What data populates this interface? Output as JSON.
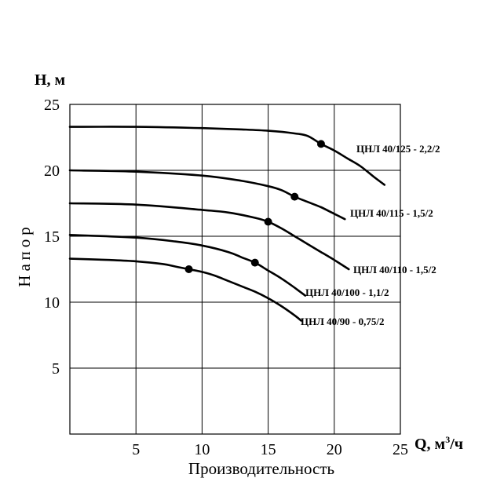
{
  "chart_data": {
    "type": "line",
    "xlabel": "Производительность",
    "ylabel": "Напор",
    "x_axis_title": {
      "main": "Q, м",
      "sup": "3",
      "rest": "/ч"
    },
    "y_axis_title": "H, м",
    "xlim": [
      0,
      25
    ],
    "ylim": [
      0,
      25
    ],
    "x_ticks": [
      5,
      10,
      15,
      20,
      25
    ],
    "y_ticks": [
      5,
      10,
      15,
      20,
      25
    ],
    "grid": true,
    "series": [
      {
        "name": "ЦНЛ 40/125 - 2,2/2",
        "x": [
          0,
          5,
          10,
          13,
          15,
          17,
          18,
          19,
          20,
          21,
          22,
          23,
          23.8
        ],
        "y": [
          23.3,
          23.3,
          23.2,
          23.1,
          23.0,
          22.8,
          22.6,
          22.0,
          21.5,
          20.9,
          20.3,
          19.5,
          18.9
        ],
        "marker": {
          "x": 19,
          "y": 22.0
        }
      },
      {
        "name": "ЦНЛ 40/115 - 1,5/2",
        "x": [
          0,
          5,
          10,
          13,
          15,
          16,
          17,
          18,
          19,
          20,
          20.8
        ],
        "y": [
          20.0,
          19.9,
          19.6,
          19.2,
          18.8,
          18.5,
          18.0,
          17.6,
          17.2,
          16.7,
          16.3
        ],
        "marker": {
          "x": 17,
          "y": 18.0
        }
      },
      {
        "name": "ЦНЛ 40/110 - 1,5/2",
        "x": [
          0,
          5,
          10,
          12,
          14,
          15,
          16,
          17,
          18,
          19,
          20,
          21.1
        ],
        "y": [
          17.5,
          17.4,
          17.0,
          16.8,
          16.4,
          16.1,
          15.6,
          15.0,
          14.4,
          13.8,
          13.2,
          12.5
        ],
        "marker": {
          "x": 15,
          "y": 16.1
        }
      },
      {
        "name": "ЦНЛ 40/100 - 1,1/2",
        "x": [
          0,
          5,
          8,
          10,
          12,
          13,
          14,
          15,
          16,
          17,
          17.8
        ],
        "y": [
          15.1,
          14.9,
          14.6,
          14.3,
          13.8,
          13.4,
          13.0,
          12.4,
          11.8,
          11.1,
          10.5
        ],
        "marker": {
          "x": 14,
          "y": 13.0
        }
      },
      {
        "name": "ЦНЛ 40/90 - 0,75/2",
        "x": [
          0,
          3,
          5,
          7,
          8,
          9,
          10,
          11,
          12,
          13,
          14,
          15,
          16,
          17,
          17.5
        ],
        "y": [
          13.3,
          13.2,
          13.1,
          12.9,
          12.7,
          12.5,
          12.3,
          12.0,
          11.6,
          11.2,
          10.8,
          10.3,
          9.7,
          9.0,
          8.6
        ],
        "marker": {
          "x": 9,
          "y": 12.5
        }
      }
    ]
  }
}
